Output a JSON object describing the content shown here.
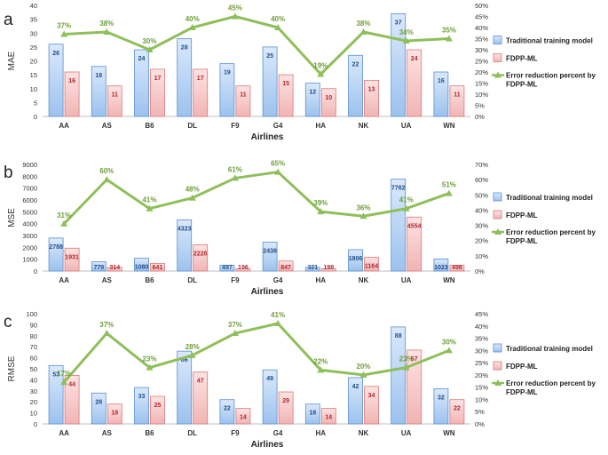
{
  "colors": {
    "traditional_fill_top": "#dbe9fb",
    "traditional_fill_bottom": "#9cc2ee",
    "traditional_stroke": "#5b8fd0",
    "traditional_label": "#1f4e8c",
    "fdpp_fill_top": "#fde3e3",
    "fdpp_fill_bottom": "#f1b4b4",
    "fdpp_stroke": "#d97a7a",
    "fdpp_label": "#b3262c",
    "line": "#8fbf5a",
    "line_label": "#6e9e3a",
    "axis_text": "#333333"
  },
  "chart_data": [
    {
      "type": "bar",
      "panel_letter": "a",
      "ylabel": "MAE",
      "xlabel": "Airlines",
      "categories": [
        "AA",
        "AS",
        "B6",
        "DL",
        "F9",
        "G4",
        "HA",
        "NK",
        "UA",
        "WN"
      ],
      "ylim": [
        0,
        40
      ],
      "yticks": [
        "0",
        "5",
        "10",
        "15",
        "20",
        "25",
        "30",
        "35",
        "40"
      ],
      "y2lim": [
        0,
        50
      ],
      "y2ticks": [
        "0%",
        "5%",
        "10%",
        "15%",
        "20%",
        "25%",
        "30%",
        "35%",
        "40%",
        "45%",
        "50%"
      ],
      "series": [
        {
          "name": "Traditional training model",
          "values": [
            26,
            18,
            24,
            28,
            19,
            25,
            12,
            22,
            37,
            16
          ],
          "labels": [
            "26",
            "18",
            "24",
            "28",
            "19",
            "25",
            "12",
            "22",
            "37",
            "16"
          ]
        },
        {
          "name": "FDPP-ML",
          "values": [
            16,
            11,
            17,
            17,
            11,
            15,
            10,
            13,
            24,
            11
          ],
          "labels": [
            "16",
            "11",
            "17",
            "17",
            "11",
            "15",
            "10",
            "13",
            "24",
            "11"
          ]
        },
        {
          "name": "Error reduction percent by FDPP-ML",
          "axis": "secondary",
          "values": [
            37,
            38,
            30,
            40,
            45,
            40,
            19,
            38,
            34,
            35
          ],
          "labels": [
            "37%",
            "38%",
            "30%",
            "40%",
            "45%",
            "40%",
            "19%",
            "38%",
            "34%",
            "35%"
          ]
        }
      ]
    },
    {
      "type": "bar",
      "panel_letter": "b",
      "ylabel": "MSE",
      "xlabel": "Airlines",
      "categories": [
        "AA",
        "AS",
        "B6",
        "DL",
        "F9",
        "G4",
        "HA",
        "NK",
        "UA",
        "WN"
      ],
      "ylim": [
        0,
        9000
      ],
      "yticks": [
        "0",
        "1000",
        "2000",
        "3000",
        "4000",
        "5000",
        "6000",
        "7000",
        "8000",
        "9000"
      ],
      "y2lim": [
        0,
        70
      ],
      "y2ticks": [
        "0%",
        "10%",
        "20%",
        "30%",
        "40%",
        "50%",
        "60%",
        "70%"
      ],
      "series": [
        {
          "name": "Traditional training model",
          "values": [
            2788,
            779,
            1080,
            4323,
            497,
            2438,
            321,
            1806,
            7762,
            1023
          ],
          "labels": [
            "2788",
            "779",
            "1080",
            "4323",
            "497",
            "2438",
            "321",
            "1806",
            "7762",
            "1023"
          ]
        },
        {
          "name": "FDPP-ML",
          "values": [
            1931,
            314,
            641,
            2226,
            196,
            847,
            198,
            1164,
            4554,
            498
          ],
          "labels": [
            "1931",
            "314",
            "641",
            "2226",
            "196",
            "847",
            "198",
            "1164",
            "4554",
            "498"
          ]
        },
        {
          "name": "Error reduction percent by FDPP-ML",
          "axis": "secondary",
          "values": [
            31,
            60,
            41,
            48,
            61,
            65,
            39,
            36,
            41,
            51
          ],
          "labels": [
            "31%",
            "60%",
            "41%",
            "48%",
            "61%",
            "65%",
            "39%",
            "36%",
            "41%",
            "51%"
          ]
        }
      ]
    },
    {
      "type": "bar",
      "panel_letter": "c",
      "ylabel": "RMSE",
      "xlabel": "Airlines",
      "categories": [
        "AA",
        "AS",
        "B6",
        "DL",
        "F9",
        "G4",
        "HA",
        "NK",
        "UA",
        "WN"
      ],
      "ylim": [
        0,
        100
      ],
      "yticks": [
        "0",
        "10",
        "20",
        "30",
        "40",
        "50",
        "60",
        "70",
        "80",
        "90",
        "100"
      ],
      "y2lim": [
        0,
        45
      ],
      "y2ticks": [
        "0%",
        "5%",
        "10%",
        "15%",
        "20%",
        "25%",
        "30%",
        "35%",
        "40%",
        "45%"
      ],
      "series": [
        {
          "name": "Traditional training model",
          "values": [
            53,
            28,
            33,
            66,
            22,
            49,
            18,
            42,
            88,
            32
          ],
          "labels": [
            "53",
            "28",
            "33",
            "66",
            "22",
            "49",
            "18",
            "42",
            "88",
            "32"
          ]
        },
        {
          "name": "FDPP-ML",
          "values": [
            44,
            18,
            25,
            47,
            14,
            29,
            14,
            34,
            67,
            22
          ],
          "labels": [
            "44",
            "18",
            "25",
            "47",
            "14",
            "29",
            "14",
            "34",
            "67",
            "22"
          ]
        },
        {
          "name": "Error reduction percent by FDPP-ML",
          "axis": "secondary",
          "values": [
            17,
            37,
            23,
            28,
            37,
            41,
            22,
            20,
            23,
            30
          ],
          "labels": [
            "17%",
            "37%",
            "23%",
            "28%",
            "37%",
            "41%",
            "22%",
            "20%",
            "23%",
            "30%"
          ]
        }
      ]
    }
  ]
}
